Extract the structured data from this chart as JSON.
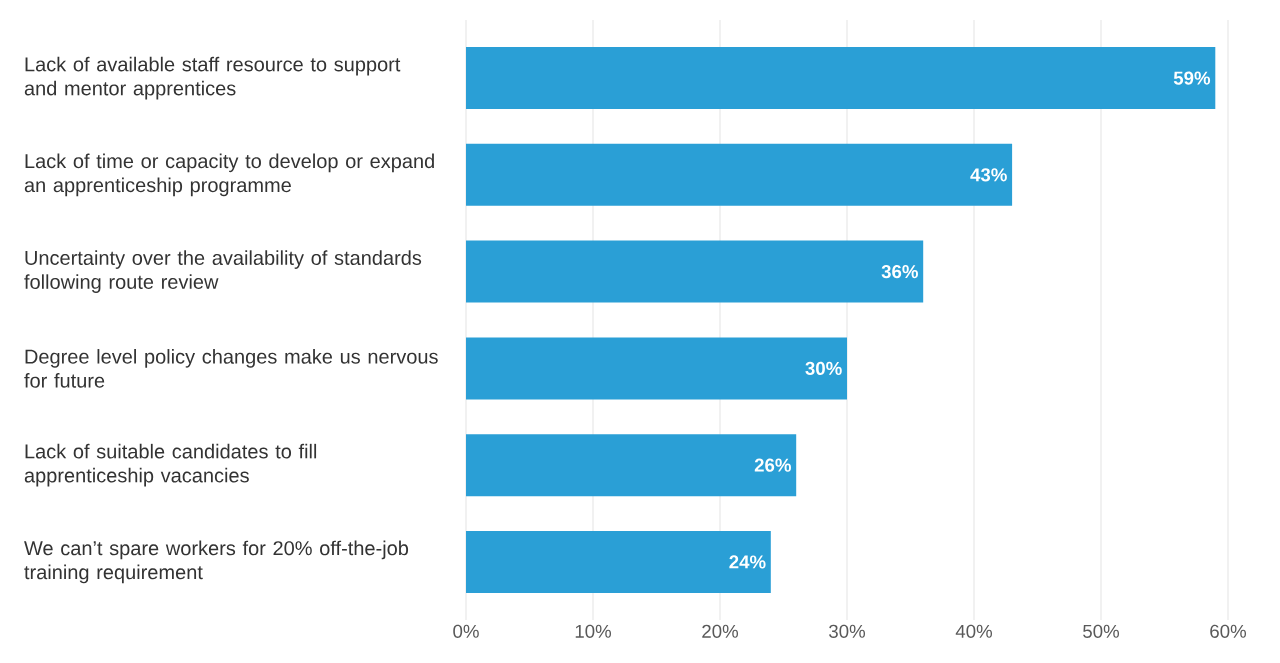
{
  "chart_data": {
    "type": "bar",
    "orientation": "horizontal",
    "categories": [
      "Lack of available staff resource to support and mentor apprentices",
      "Lack of time or capacity to develop or expand an apprenticeship programme",
      "Uncertainty over the availability of standards following route review",
      "Degree level policy changes make us nervous for future",
      "Lack of suitable candidates to fill apprenticeship vacancies",
      "We can’t spare workers for 20% off-the-job training requirement"
    ],
    "values": [
      59,
      43,
      36,
      30,
      26,
      24
    ],
    "value_labels": [
      "59%",
      "43%",
      "36%",
      "30%",
      "26%",
      "24%"
    ],
    "color": "#2a9fd6",
    "xlim": [
      0,
      60
    ],
    "xticks": [
      {
        "value": 0,
        "label": "0%"
      },
      {
        "value": 10,
        "label": "10%"
      },
      {
        "value": 20,
        "label": "20%"
      },
      {
        "value": 30,
        "label": "30%"
      },
      {
        "value": 40,
        "label": "40%"
      },
      {
        "value": 50,
        "label": "50%"
      },
      {
        "value": 60,
        "label": "60%"
      }
    ],
    "grid": "x"
  }
}
